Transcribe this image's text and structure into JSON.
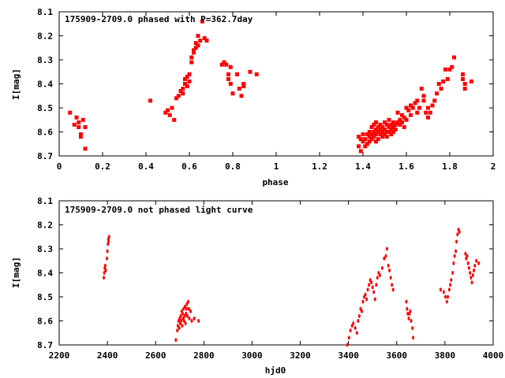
{
  "chart_data": [
    {
      "type": "scatter",
      "title": "175909-2709.0 phased with P=362.7day",
      "xlabel": "phase",
      "ylabel": "I[mag]",
      "xlim": [
        0,
        2
      ],
      "ylim": [
        8.7,
        8.1
      ],
      "y_inverted": true,
      "xticks": [
        "0",
        "0.2",
        "0.4",
        "0.6",
        "0.8",
        "1",
        "1.2",
        "1.4",
        "1.6",
        "1.8",
        "2"
      ],
      "yticks": [
        "8.1",
        "8.2",
        "8.3",
        "8.4",
        "8.5",
        "8.6",
        "8.7"
      ],
      "color": "#ff0000",
      "marker": "square",
      "points": [
        [
          0.05,
          8.52
        ],
        [
          0.07,
          8.57
        ],
        [
          0.08,
          8.54
        ],
        [
          0.09,
          8.58
        ],
        [
          0.09,
          8.56
        ],
        [
          0.1,
          8.61
        ],
        [
          0.1,
          8.62
        ],
        [
          0.11,
          8.55
        ],
        [
          0.12,
          8.58
        ],
        [
          0.12,
          8.67
        ],
        [
          0.42,
          8.47
        ],
        [
          0.49,
          8.52
        ],
        [
          0.5,
          8.51
        ],
        [
          0.51,
          8.53
        ],
        [
          0.52,
          8.5
        ],
        [
          0.53,
          8.55
        ],
        [
          0.54,
          8.46
        ],
        [
          0.55,
          8.45
        ],
        [
          0.56,
          8.43
        ],
        [
          0.57,
          8.42
        ],
        [
          0.57,
          8.44
        ],
        [
          0.58,
          8.38
        ],
        [
          0.58,
          8.4
        ],
        [
          0.59,
          8.41
        ],
        [
          0.59,
          8.37
        ],
        [
          0.6,
          8.39
        ],
        [
          0.6,
          8.36
        ],
        [
          0.61,
          8.31
        ],
        [
          0.61,
          8.29
        ],
        [
          0.62,
          8.27
        ],
        [
          0.62,
          8.26
        ],
        [
          0.63,
          8.25
        ],
        [
          0.63,
          8.23
        ],
        [
          0.64,
          8.24
        ],
        [
          0.64,
          8.2
        ],
        [
          0.65,
          8.22
        ],
        [
          0.66,
          8.14
        ],
        [
          0.67,
          8.21
        ],
        [
          0.68,
          8.22
        ],
        [
          0.75,
          8.32
        ],
        [
          0.76,
          8.31
        ],
        [
          0.77,
          8.32
        ],
        [
          0.78,
          8.36
        ],
        [
          0.78,
          8.38
        ],
        [
          0.79,
          8.33
        ],
        [
          0.79,
          8.4
        ],
        [
          0.8,
          8.44
        ],
        [
          0.82,
          8.36
        ],
        [
          0.83,
          8.42
        ],
        [
          0.84,
          8.45
        ],
        [
          0.85,
          8.41
        ],
        [
          0.85,
          8.4
        ],
        [
          0.88,
          8.35
        ],
        [
          0.91,
          8.36
        ],
        [
          1.38,
          8.62
        ],
        [
          1.38,
          8.66
        ],
        [
          1.39,
          8.63
        ],
        [
          1.39,
          8.68
        ],
        [
          1.4,
          8.61
        ],
        [
          1.4,
          8.64
        ],
        [
          1.41,
          8.63
        ],
        [
          1.41,
          8.66
        ],
        [
          1.42,
          8.61
        ],
        [
          1.42,
          8.65
        ],
        [
          1.43,
          8.62
        ],
        [
          1.43,
          8.6
        ],
        [
          1.43,
          8.64
        ],
        [
          1.44,
          8.58
        ],
        [
          1.44,
          8.61
        ],
        [
          1.44,
          8.63
        ],
        [
          1.45,
          8.57
        ],
        [
          1.45,
          8.6
        ],
        [
          1.45,
          8.62
        ],
        [
          1.46,
          8.56
        ],
        [
          1.46,
          8.59
        ],
        [
          1.46,
          8.61
        ],
        [
          1.46,
          8.64
        ],
        [
          1.47,
          8.58
        ],
        [
          1.47,
          8.6
        ],
        [
          1.47,
          8.63
        ],
        [
          1.48,
          8.57
        ],
        [
          1.48,
          8.59
        ],
        [
          1.48,
          8.61
        ],
        [
          1.49,
          8.58
        ],
        [
          1.49,
          8.6
        ],
        [
          1.49,
          8.62
        ],
        [
          1.5,
          8.56
        ],
        [
          1.5,
          8.59
        ],
        [
          1.5,
          8.61
        ],
        [
          1.51,
          8.57
        ],
        [
          1.51,
          8.6
        ],
        [
          1.51,
          8.62
        ],
        [
          1.52,
          8.55
        ],
        [
          1.52,
          8.58
        ],
        [
          1.52,
          8.6
        ],
        [
          1.53,
          8.57
        ],
        [
          1.53,
          8.59
        ],
        [
          1.53,
          8.61
        ],
        [
          1.54,
          8.56
        ],
        [
          1.54,
          8.58
        ],
        [
          1.54,
          8.6
        ],
        [
          1.55,
          8.57
        ],
        [
          1.55,
          8.59
        ],
        [
          1.56,
          8.52
        ],
        [
          1.56,
          8.56
        ],
        [
          1.57,
          8.55
        ],
        [
          1.57,
          8.57
        ],
        [
          1.58,
          8.53
        ],
        [
          1.58,
          8.56
        ],
        [
          1.59,
          8.54
        ],
        [
          1.59,
          8.58
        ],
        [
          1.6,
          8.5
        ],
        [
          1.6,
          8.55
        ],
        [
          1.61,
          8.51
        ],
        [
          1.62,
          8.49
        ],
        [
          1.62,
          8.53
        ],
        [
          1.63,
          8.5
        ],
        [
          1.64,
          8.48
        ],
        [
          1.65,
          8.47
        ],
        [
          1.65,
          8.52
        ],
        [
          1.66,
          8.5
        ],
        [
          1.67,
          8.42
        ],
        [
          1.68,
          8.45
        ],
        [
          1.68,
          8.47
        ],
        [
          1.69,
          8.52
        ],
        [
          1.7,
          8.5
        ],
        [
          1.7,
          8.54
        ],
        [
          1.71,
          8.52
        ],
        [
          1.72,
          8.49
        ],
        [
          1.73,
          8.47
        ],
        [
          1.74,
          8.44
        ],
        [
          1.75,
          8.4
        ],
        [
          1.76,
          8.42
        ],
        [
          1.77,
          8.39
        ],
        [
          1.78,
          8.34
        ],
        [
          1.79,
          8.38
        ],
        [
          1.8,
          8.34
        ],
        [
          1.81,
          8.33
        ],
        [
          1.82,
          8.29
        ],
        [
          1.86,
          8.36
        ],
        [
          1.86,
          8.38
        ],
        [
          1.87,
          8.4
        ],
        [
          1.87,
          8.42
        ],
        [
          1.9,
          8.39
        ]
      ]
    },
    {
      "type": "scatter",
      "title": "175909-2709.0 not phased light curve",
      "xlabel": "hjd0",
      "ylabel": "I[mag]",
      "xlim": [
        2200,
        4000
      ],
      "ylim": [
        8.7,
        8.1
      ],
      "y_inverted": true,
      "xticks": [
        "2200",
        "2400",
        "2600",
        "2800",
        "3000",
        "3200",
        "3400",
        "3600",
        "3800",
        "4000"
      ],
      "yticks": [
        "8.1",
        "8.2",
        "8.3",
        "8.4",
        "8.5",
        "8.6",
        "8.7"
      ],
      "color": "#ff0000",
      "marker": "dot",
      "points": [
        [
          2385,
          8.42
        ],
        [
          2387,
          8.4
        ],
        [
          2389,
          8.38
        ],
        [
          2391,
          8.37
        ],
        [
          2393,
          8.39
        ],
        [
          2398,
          8.34
        ],
        [
          2400,
          8.31
        ],
        [
          2402,
          8.28
        ],
        [
          2404,
          8.26
        ],
        [
          2405,
          8.27
        ],
        [
          2407,
          8.25
        ],
        [
          2684,
          8.68
        ],
        [
          2690,
          8.64
        ],
        [
          2692,
          8.62
        ],
        [
          2695,
          8.6
        ],
        [
          2698,
          8.63
        ],
        [
          2700,
          8.59
        ],
        [
          2702,
          8.61
        ],
        [
          2704,
          8.58
        ],
        [
          2706,
          8.6
        ],
        [
          2708,
          8.56
        ],
        [
          2710,
          8.62
        ],
        [
          2712,
          8.57
        ],
        [
          2714,
          8.59
        ],
        [
          2716,
          8.55
        ],
        [
          2718,
          8.6
        ],
        [
          2720,
          8.58
        ],
        [
          2722,
          8.54
        ],
        [
          2724,
          8.61
        ],
        [
          2726,
          8.57
        ],
        [
          2728,
          8.55
        ],
        [
          2730,
          8.53
        ],
        [
          2732,
          8.58
        ],
        [
          2735,
          8.52
        ],
        [
          2738,
          8.55
        ],
        [
          2740,
          8.59
        ],
        [
          2745,
          8.56
        ],
        [
          2750,
          8.6
        ],
        [
          2760,
          8.59
        ],
        [
          2778,
          8.6
        ],
        [
          3395,
          8.7
        ],
        [
          3402,
          8.67
        ],
        [
          3408,
          8.64
        ],
        [
          3415,
          8.62
        ],
        [
          3420,
          8.61
        ],
        [
          3428,
          8.63
        ],
        [
          3435,
          8.65
        ],
        [
          3440,
          8.6
        ],
        [
          3445,
          8.58
        ],
        [
          3450,
          8.55
        ],
        [
          3455,
          8.56
        ],
        [
          3460,
          8.52
        ],
        [
          3465,
          8.5
        ],
        [
          3470,
          8.49
        ],
        [
          3475,
          8.51
        ],
        [
          3480,
          8.47
        ],
        [
          3485,
          8.45
        ],
        [
          3490,
          8.43
        ],
        [
          3495,
          8.44
        ],
        [
          3500,
          8.46
        ],
        [
          3505,
          8.48
        ],
        [
          3510,
          8.51
        ],
        [
          3515,
          8.45
        ],
        [
          3520,
          8.42
        ],
        [
          3525,
          8.4
        ],
        [
          3530,
          8.41
        ],
        [
          3540,
          8.38
        ],
        [
          3548,
          8.34
        ],
        [
          3555,
          8.33
        ],
        [
          3560,
          8.3
        ],
        [
          3565,
          8.37
        ],
        [
          3570,
          8.39
        ],
        [
          3575,
          8.42
        ],
        [
          3580,
          8.45
        ],
        [
          3585,
          8.47
        ],
        [
          3640,
          8.52
        ],
        [
          3643,
          8.55
        ],
        [
          3646,
          8.57
        ],
        [
          3650,
          8.59
        ],
        [
          3653,
          8.57
        ],
        [
          3656,
          8.56
        ],
        [
          3660,
          8.6
        ],
        [
          3665,
          8.63
        ],
        [
          3668,
          8.67
        ],
        [
          3782,
          8.47
        ],
        [
          3795,
          8.48
        ],
        [
          3802,
          8.5
        ],
        [
          3808,
          8.52
        ],
        [
          3812,
          8.5
        ],
        [
          3818,
          8.47
        ],
        [
          3822,
          8.45
        ],
        [
          3826,
          8.43
        ],
        [
          3832,
          8.4
        ],
        [
          3836,
          8.36
        ],
        [
          3840,
          8.33
        ],
        [
          3845,
          8.31
        ],
        [
          3848,
          8.27
        ],
        [
          3852,
          8.24
        ],
        [
          3856,
          8.22
        ],
        [
          3860,
          8.23
        ],
        [
          3885,
          8.32
        ],
        [
          3888,
          8.34
        ],
        [
          3892,
          8.33
        ],
        [
          3896,
          8.36
        ],
        [
          3900,
          8.38
        ],
        [
          3904,
          8.4
        ],
        [
          3908,
          8.42
        ],
        [
          3912,
          8.44
        ],
        [
          3916,
          8.41
        ],
        [
          3920,
          8.39
        ],
        [
          3924,
          8.37
        ],
        [
          3930,
          8.35
        ],
        [
          3940,
          8.36
        ]
      ]
    }
  ]
}
